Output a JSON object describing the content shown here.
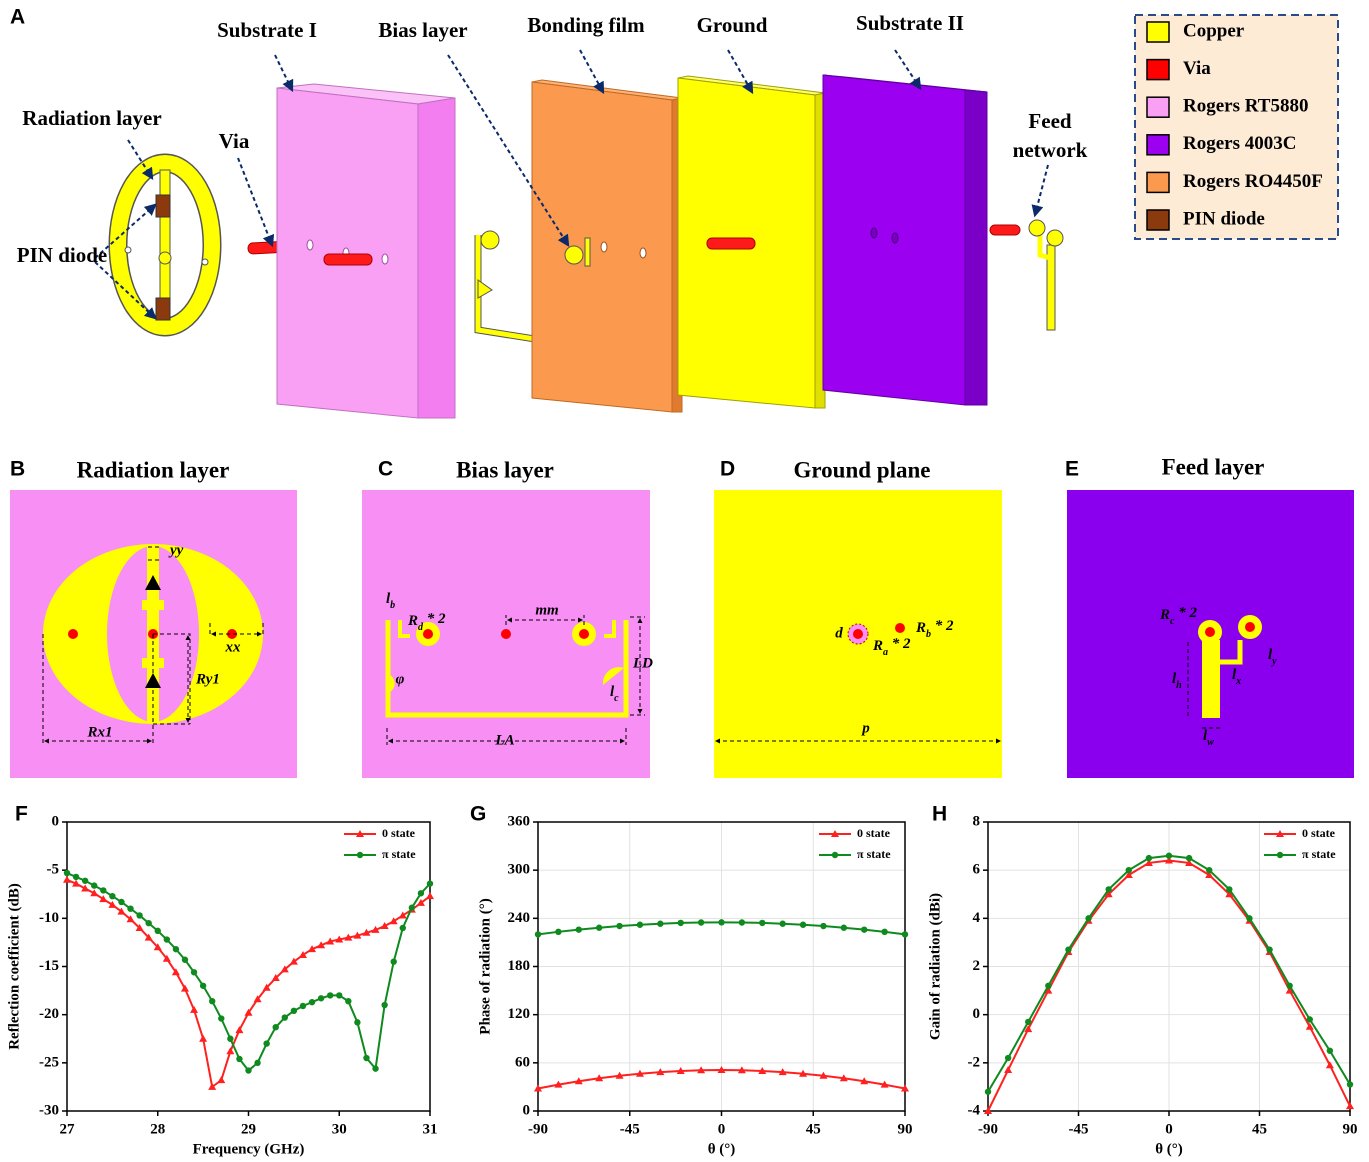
{
  "panel_a": {
    "label": "A",
    "substrate_1": "Substrate I",
    "bias_layer": "Bias layer",
    "bonding_film": "Bonding film",
    "ground": "Ground",
    "substrate_2": "Substrate II",
    "radiation_layer": "Radiation layer",
    "via": "Via",
    "pin_diode": "PIN diode",
    "feed_network": [
      "Feed",
      "network"
    ],
    "legend": [
      {
        "name": "Copper",
        "color": "#ffff00"
      },
      {
        "name": "Via",
        "color": "#ff0000"
      },
      {
        "name": "Rogers RT5880",
        "color": "#f9a0f5"
      },
      {
        "name": "Rogers 4003C",
        "color": "#9b00f0"
      },
      {
        "name": "Rogers RO4450F",
        "color": "#fb9a4e"
      },
      {
        "name": "PIN diode",
        "color": "#8b3a0e"
      }
    ]
  },
  "panel_b": {
    "label": "B",
    "title": "Radiation layer",
    "yy": "yy",
    "xx": "xx",
    "ry1": "Ry1",
    "rx1": "Rx1"
  },
  "panel_c": {
    "label": "C",
    "title": "Bias layer",
    "lb": {
      "base": "l",
      "sub": "b"
    },
    "rd": {
      "base": "R",
      "sub": "d",
      "after": " * 2"
    },
    "mm": "mm",
    "ld": "LD",
    "phi": "φ",
    "lc": {
      "base": "l",
      "sub": "c"
    },
    "la": "LA"
  },
  "panel_d": {
    "label": "D",
    "title": "Ground plane",
    "d": "d",
    "rb": {
      "base": "R",
      "sub": "b",
      "after": " * 2"
    },
    "ra": {
      "base": "R",
      "sub": "a",
      "after": " * 2"
    },
    "p": "p"
  },
  "panel_e": {
    "label": "E",
    "title": "Feed layer",
    "rc": {
      "base": "R",
      "sub": "c",
      "after": " * 2"
    },
    "ly": {
      "base": "l",
      "sub": "y"
    },
    "lx": {
      "base": "l",
      "sub": "x"
    },
    "lh": {
      "base": "l",
      "sub": "h"
    },
    "lw": {
      "base": "l",
      "sub": "w"
    }
  },
  "chart_data": [
    {
      "type": "line",
      "label": "F",
      "xlabel": "Frequency (GHz)",
      "ylabel": "Reflection coefficient (dB)",
      "xlim": [
        27,
        31
      ],
      "xticks": [
        27,
        28,
        29,
        30,
        31
      ],
      "ylim": [
        -30,
        0
      ],
      "yticks": [
        -30,
        -25,
        -20,
        -15,
        -10,
        -5,
        0
      ],
      "grid": false,
      "legend": "upper right",
      "x": [
        27.0,
        27.1,
        27.2,
        27.3,
        27.4,
        27.5,
        27.6,
        27.7,
        27.8,
        27.9,
        28.0,
        28.1,
        28.2,
        28.3,
        28.4,
        28.5,
        28.6,
        28.7,
        28.8,
        28.9,
        29.0,
        29.1,
        29.2,
        29.3,
        29.4,
        29.5,
        29.6,
        29.7,
        29.8,
        29.9,
        30.0,
        30.1,
        30.2,
        30.3,
        30.4,
        30.5,
        30.6,
        30.7,
        30.8,
        30.9,
        31.0
      ],
      "series": [
        {
          "name": "0 state",
          "color": "#ff2020",
          "marker": "triangle",
          "values": [
            -6.0,
            -6.4,
            -6.9,
            -7.4,
            -8.0,
            -8.6,
            -9.3,
            -10.1,
            -11.0,
            -12.0,
            -13.0,
            -14.2,
            -15.6,
            -17.3,
            -19.5,
            -22.5,
            -27.5,
            -26.8,
            -23.8,
            -21.6,
            -19.8,
            -18.4,
            -17.2,
            -16.2,
            -15.3,
            -14.5,
            -13.8,
            -13.2,
            -12.8,
            -12.4,
            -12.2,
            -12.0,
            -11.8,
            -11.5,
            -11.2,
            -10.8,
            -10.3,
            -9.7,
            -9.1,
            -8.4,
            -7.7
          ]
        },
        {
          "name": "π state",
          "color": "#0e8a1e",
          "marker": "circle",
          "values": [
            -5.3,
            -5.7,
            -6.1,
            -6.6,
            -7.1,
            -7.7,
            -8.3,
            -9.0,
            -9.7,
            -10.5,
            -11.3,
            -12.2,
            -13.2,
            -14.3,
            -15.6,
            -17.0,
            -18.6,
            -20.4,
            -22.5,
            -24.6,
            -25.8,
            -25.0,
            -23.0,
            -21.3,
            -20.3,
            -19.6,
            -19.1,
            -18.7,
            -18.3,
            -18.0,
            -18.0,
            -18.6,
            -20.8,
            -24.5,
            -25.6,
            -19.0,
            -14.5,
            -11.0,
            -8.9,
            -7.4,
            -6.4
          ]
        }
      ]
    },
    {
      "type": "line",
      "label": "G",
      "xlabel": "θ (°)",
      "ylabel": "Phase of radiation (°)",
      "xlim": [
        -90,
        90
      ],
      "xticks": [
        -90,
        -45,
        0,
        45,
        90
      ],
      "ylim": [
        0,
        360
      ],
      "yticks": [
        0,
        60,
        120,
        180,
        240,
        300,
        360
      ],
      "grid": true,
      "legend": "upper right",
      "x": [
        -90,
        -80,
        -70,
        -60,
        -50,
        -40,
        -30,
        -20,
        -10,
        0,
        10,
        20,
        30,
        40,
        50,
        60,
        70,
        80,
        90
      ],
      "series": [
        {
          "name": "0 state",
          "color": "#ff2020",
          "marker": "triangle",
          "values": [
            28,
            32.8,
            37.1,
            40.8,
            43.9,
            46.4,
            48.4,
            49.9,
            50.7,
            51,
            50.7,
            49.9,
            48.4,
            46.4,
            43.9,
            40.8,
            37.1,
            32.8,
            28
          ]
        },
        {
          "name": "π state",
          "color": "#0e8a1e",
          "marker": "circle",
          "values": [
            220,
            223.2,
            225.9,
            228.3,
            230.4,
            232.0,
            233.3,
            234.3,
            234.8,
            235,
            234.8,
            234.3,
            233.3,
            232.0,
            230.4,
            228.3,
            225.9,
            223.2,
            220
          ]
        }
      ]
    },
    {
      "type": "line",
      "label": "H",
      "xlabel": "θ (°)",
      "ylabel": "Gain of radiation (dBi)",
      "xlim": [
        -90,
        90
      ],
      "xticks": [
        -90,
        -45,
        0,
        45,
        90
      ],
      "ylim": [
        -4,
        8
      ],
      "yticks": [
        -4,
        -2,
        0,
        2,
        4,
        6,
        8
      ],
      "grid": true,
      "legend": "upper right",
      "x": [
        -90,
        -80,
        -70,
        -60,
        -50,
        -40,
        -30,
        -20,
        -10,
        0,
        10,
        20,
        30,
        40,
        50,
        60,
        70,
        80,
        90
      ],
      "series": [
        {
          "name": "0 state",
          "color": "#ff2020",
          "marker": "triangle",
          "values": [
            -4.0,
            -2.3,
            -0.6,
            1.0,
            2.6,
            3.9,
            5.0,
            5.8,
            6.3,
            6.4,
            6.3,
            5.8,
            5.0,
            3.9,
            2.6,
            1.0,
            -0.5,
            -2.1,
            -3.8
          ]
        },
        {
          "name": "π state",
          "color": "#0e8a1e",
          "marker": "circle",
          "values": [
            -3.2,
            -1.8,
            -0.3,
            1.2,
            2.7,
            4.0,
            5.2,
            6.0,
            6.5,
            6.6,
            6.5,
            6.0,
            5.2,
            4.0,
            2.7,
            1.2,
            -0.2,
            -1.5,
            -2.9
          ]
        }
      ]
    }
  ]
}
